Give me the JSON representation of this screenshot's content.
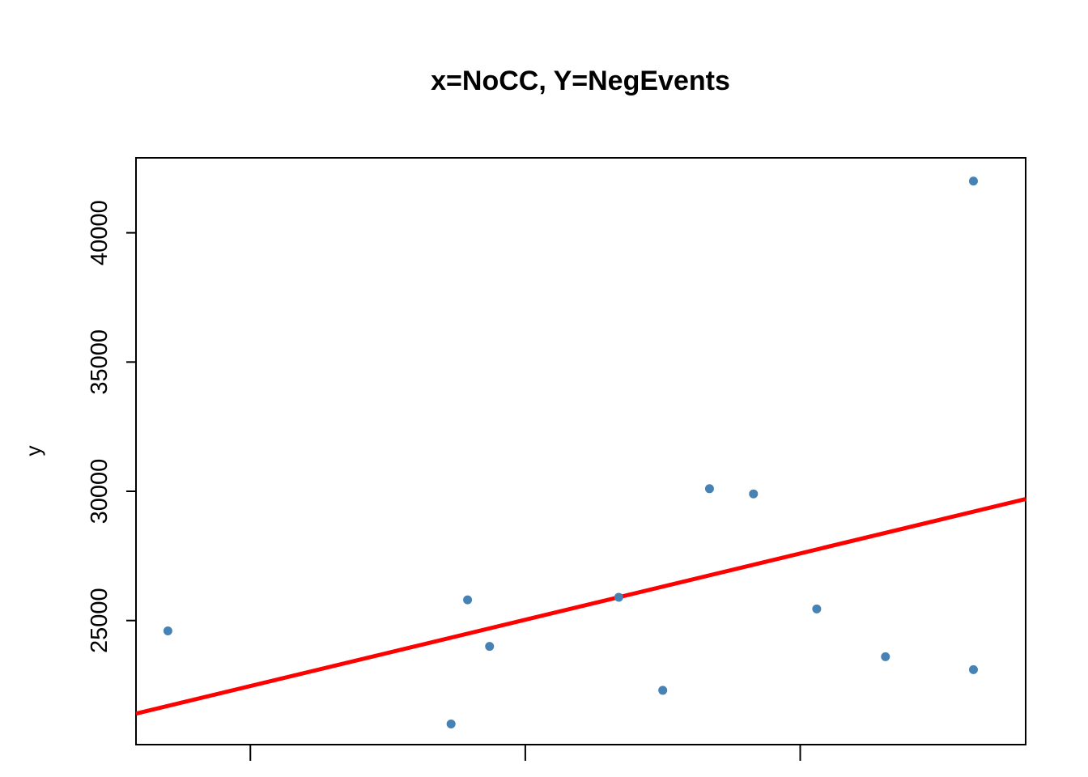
{
  "chart_data": {
    "type": "scatter",
    "title": "x=NoCC, Y=NegEvents",
    "xlabel": "",
    "ylabel": "y",
    "xlim": [
      -0.176,
      3.06
    ],
    "ylim": [
      20200,
      42900
    ],
    "x_ticks": [
      0.24,
      1.24,
      2.24
    ],
    "y_ticks": [
      25000,
      30000,
      35000,
      40000
    ],
    "y_tick_labels": [
      "25000",
      "30000",
      "35000",
      "40000"
    ],
    "grid": false,
    "point_color": "#4682B4",
    "line_color": "#FF0000",
    "points": [
      {
        "x": -0.06,
        "y": 24600
      },
      {
        "x": 0.97,
        "y": 21000
      },
      {
        "x": 1.03,
        "y": 25800
      },
      {
        "x": 1.11,
        "y": 24000
      },
      {
        "x": 1.58,
        "y": 25900
      },
      {
        "x": 1.74,
        "y": 22300
      },
      {
        "x": 1.91,
        "y": 30100
      },
      {
        "x": 2.07,
        "y": 29900
      },
      {
        "x": 2.3,
        "y": 25450
      },
      {
        "x": 2.55,
        "y": 23600
      },
      {
        "x": 2.87,
        "y": 42000
      },
      {
        "x": 2.87,
        "y": 23100
      }
    ],
    "fit_line": {
      "x": [
        -0.176,
        3.06
      ],
      "y": [
        21400,
        29700
      ]
    }
  }
}
